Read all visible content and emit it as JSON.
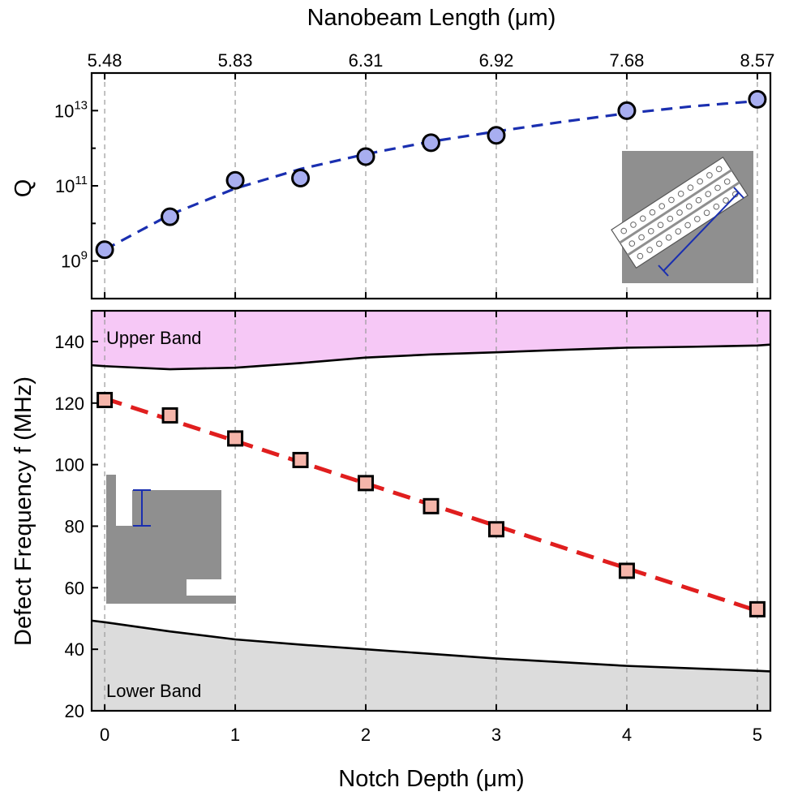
{
  "colors": {
    "q_fit": "#1a2fb0",
    "q_marker": "#a8aef0",
    "freq_fit": "#e01e1e",
    "freq_marker": "#f5b5aa",
    "upper_band": "#f6c8f6",
    "lower_band": "#dcdcdc",
    "inset_gray": "#8f8f8f",
    "inset_line": "#1a2fb0"
  },
  "chart_data": [
    {
      "type": "scatter",
      "panel": "top",
      "ylabel": "Q",
      "yscale": "log",
      "ylim": [
        100000000,
        100000000000000
      ],
      "yticks": [
        1000000000,
        100000000000,
        10000000000000
      ],
      "ytick_labels": [
        {
          "base": "10",
          "exp": "9"
        },
        {
          "base": "10",
          "exp": "11"
        },
        {
          "base": "10",
          "exp": "13"
        }
      ],
      "xlabel_top": "Nanobeam Length (μm)",
      "xticks_top": [
        0,
        1,
        2,
        3,
        4,
        5
      ],
      "xtick_labels_top": [
        "5.48",
        "5.83",
        "6.31",
        "6.92",
        "7.68",
        "8.57"
      ],
      "xlim": [
        -0.1,
        5.1
      ],
      "series": [
        {
          "name": "Q",
          "x": [
            0,
            0.5,
            1,
            1.5,
            2,
            2.5,
            3,
            4,
            5
          ],
          "y": [
            2000000000,
            15000000000,
            140000000000,
            160000000000,
            600000000000,
            1400000000000,
            2200000000000,
            10000000000000,
            20000000000000
          ],
          "marker": "circle"
        },
        {
          "name": "Q fit",
          "style": "dashed",
          "x": [
            0,
            0.5,
            1,
            1.5,
            2,
            2.5,
            3,
            3.5,
            4,
            4.5,
            5
          ],
          "y": [
            2000000000,
            17000000000,
            85000000000,
            280000000000,
            700000000000,
            1500000000000,
            2800000000000,
            5000000000000,
            8500000000000,
            13000000000000,
            18000000000000
          ]
        }
      ],
      "grid": "vertical dashed at integer x"
    },
    {
      "type": "scatter",
      "panel": "bottom",
      "xlabel": "Notch Depth (μm)",
      "ylabel": "Defect Frequency f (MHz)",
      "xlim": [
        -0.1,
        5.1
      ],
      "ylim": [
        20,
        150
      ],
      "xticks": [
        0,
        1,
        2,
        3,
        4,
        5
      ],
      "yticks": [
        20,
        40,
        60,
        80,
        100,
        120,
        140
      ],
      "series": [
        {
          "name": "Defect frequency",
          "x": [
            0,
            0.5,
            1,
            1.5,
            2,
            2.5,
            3,
            4,
            5
          ],
          "y": [
            121,
            116,
            108.5,
            101.5,
            94,
            86.5,
            79,
            65.5,
            53
          ],
          "marker": "square"
        },
        {
          "name": "Frequency fit",
          "style": "dashed",
          "x": [
            0,
            5
          ],
          "y": [
            121.5,
            52.5
          ]
        },
        {
          "name": "Upper band edge",
          "x": [
            -0.1,
            0,
            0.5,
            1,
            1.5,
            2,
            2.5,
            3,
            3.5,
            4,
            4.5,
            5,
            5.1
          ],
          "y": [
            132.3,
            132,
            131,
            131.5,
            133,
            134.8,
            135.8,
            136.5,
            137.3,
            138,
            138.3,
            138.7,
            139
          ]
        },
        {
          "name": "Lower band edge",
          "x": [
            -0.1,
            0,
            0.5,
            1,
            1.5,
            2,
            2.5,
            3,
            3.5,
            4,
            4.5,
            5,
            5.1
          ],
          "y": [
            49.3,
            48.8,
            45.8,
            43.2,
            41.5,
            40,
            38.5,
            37,
            35.8,
            34.6,
            33.8,
            33,
            32.8
          ]
        }
      ],
      "band_labels": {
        "upper": "Upper Band",
        "lower": "Lower Band"
      },
      "grid": "vertical dashed at integer x"
    }
  ]
}
